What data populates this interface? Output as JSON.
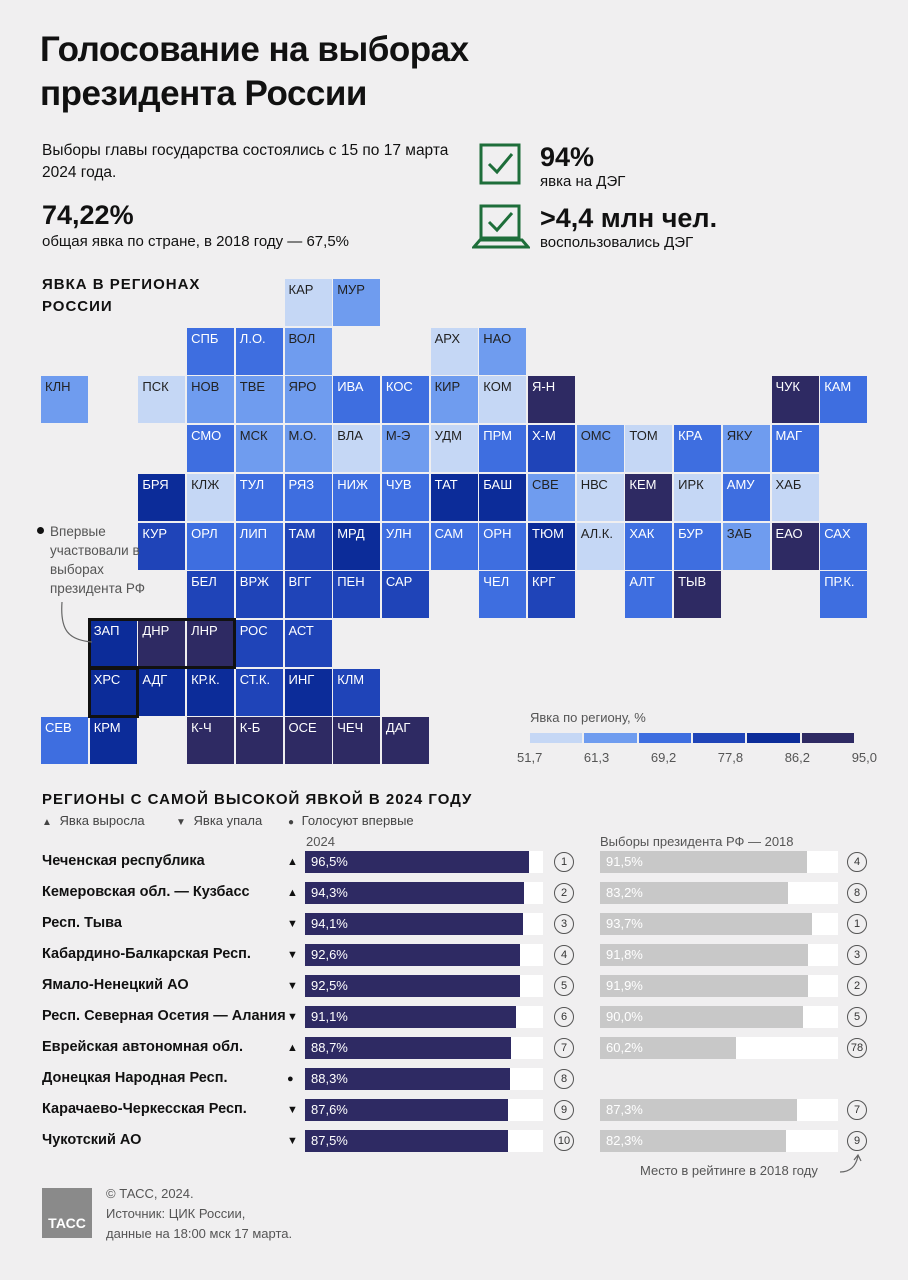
{
  "title": "Голосование на выборах президента России",
  "intro": "Выборы главы государства состоялись с 15 по 17 марта 2024 года.",
  "turnout": {
    "value": "74,22%",
    "caption": "общая явка по стране, в 2018 году — 67,5%"
  },
  "deg_turnout": {
    "value": "94%",
    "caption": "явка на ДЭГ"
  },
  "deg_users": {
    "value": ">4,4 млн чел.",
    "caption": "воспользовались ДЭГ"
  },
  "map_title": "ЯВКА В РЕГИОНАХ РОССИИ",
  "map_note": "Впервые участвовали в выборах президента РФ",
  "colors": [
    "#c5d7f5",
    "#6f9cef",
    "#3e6ee0",
    "#1f44b8",
    "#0c2c99",
    "#2e2a63"
  ],
  "map_legend": {
    "label": "Явка по региону, %",
    "ticks": [
      "51,7",
      "61,3",
      "69,2",
      "77,8",
      "86,2",
      "95,0"
    ]
  },
  "tiles": [
    {
      "code": "КАР",
      "col": 5,
      "row": 0,
      "level": 0
    },
    {
      "code": "МУР",
      "col": 6,
      "row": 0,
      "level": 1
    },
    {
      "code": "СПБ",
      "col": 3,
      "row": 1,
      "level": 2
    },
    {
      "code": "Л.О.",
      "col": 4,
      "row": 1,
      "level": 2
    },
    {
      "code": "ВОЛ",
      "col": 5,
      "row": 1,
      "level": 1
    },
    {
      "code": "АРХ",
      "col": 8,
      "row": 1,
      "level": 0
    },
    {
      "code": "НАО",
      "col": 9,
      "row": 1,
      "level": 1
    },
    {
      "code": "КЛН",
      "col": 0,
      "row": 2,
      "level": 1
    },
    {
      "code": "ПСК",
      "col": 2,
      "row": 2,
      "level": 0
    },
    {
      "code": "НОВ",
      "col": 3,
      "row": 2,
      "level": 1
    },
    {
      "code": "ТВЕ",
      "col": 4,
      "row": 2,
      "level": 1
    },
    {
      "code": "ЯРО",
      "col": 5,
      "row": 2,
      "level": 1
    },
    {
      "code": "ИВА",
      "col": 6,
      "row": 2,
      "level": 2
    },
    {
      "code": "КОС",
      "col": 7,
      "row": 2,
      "level": 2
    },
    {
      "code": "КИР",
      "col": 8,
      "row": 2,
      "level": 1
    },
    {
      "code": "КОМ",
      "col": 9,
      "row": 2,
      "level": 0
    },
    {
      "code": "Я-Н",
      "col": 10,
      "row": 2,
      "level": 5
    },
    {
      "code": "ЧУК",
      "col": 15,
      "row": 2,
      "level": 5
    },
    {
      "code": "КАМ",
      "col": 16,
      "row": 2,
      "level": 2
    },
    {
      "code": "СМО",
      "col": 3,
      "row": 3,
      "level": 2
    },
    {
      "code": "МСК",
      "col": 4,
      "row": 3,
      "level": 1
    },
    {
      "code": "М.О.",
      "col": 5,
      "row": 3,
      "level": 1
    },
    {
      "code": "ВЛА",
      "col": 6,
      "row": 3,
      "level": 0
    },
    {
      "code": "М-Э",
      "col": 7,
      "row": 3,
      "level": 1
    },
    {
      "code": "УДМ",
      "col": 8,
      "row": 3,
      "level": 0
    },
    {
      "code": "ПРМ",
      "col": 9,
      "row": 3,
      "level": 2
    },
    {
      "code": "Х-М",
      "col": 10,
      "row": 3,
      "level": 3
    },
    {
      "code": "ОМС",
      "col": 11,
      "row": 3,
      "level": 1
    },
    {
      "code": "ТОМ",
      "col": 12,
      "row": 3,
      "level": 0
    },
    {
      "code": "КРА",
      "col": 13,
      "row": 3,
      "level": 2
    },
    {
      "code": "ЯКУ",
      "col": 14,
      "row": 3,
      "level": 1
    },
    {
      "code": "МАГ",
      "col": 15,
      "row": 3,
      "level": 2
    },
    {
      "code": "БРЯ",
      "col": 2,
      "row": 4,
      "level": 4
    },
    {
      "code": "КЛЖ",
      "col": 3,
      "row": 4,
      "level": 0
    },
    {
      "code": "ТУЛ",
      "col": 4,
      "row": 4,
      "level": 2
    },
    {
      "code": "РЯЗ",
      "col": 5,
      "row": 4,
      "level": 2
    },
    {
      "code": "НИЖ",
      "col": 6,
      "row": 4,
      "level": 2
    },
    {
      "code": "ЧУВ",
      "col": 7,
      "row": 4,
      "level": 2
    },
    {
      "code": "ТАТ",
      "col": 8,
      "row": 4,
      "level": 4
    },
    {
      "code": "БАШ",
      "col": 9,
      "row": 4,
      "level": 4
    },
    {
      "code": "СВЕ",
      "col": 10,
      "row": 4,
      "level": 1
    },
    {
      "code": "НВС",
      "col": 11,
      "row": 4,
      "level": 0
    },
    {
      "code": "КЕМ",
      "col": 12,
      "row": 4,
      "level": 5
    },
    {
      "code": "ИРК",
      "col": 13,
      "row": 4,
      "level": 0
    },
    {
      "code": "АМУ",
      "col": 14,
      "row": 4,
      "level": 2
    },
    {
      "code": "ХАБ",
      "col": 15,
      "row": 4,
      "level": 0
    },
    {
      "code": "КУР",
      "col": 2,
      "row": 5,
      "level": 3
    },
    {
      "code": "ОРЛ",
      "col": 3,
      "row": 5,
      "level": 2
    },
    {
      "code": "ЛИП",
      "col": 4,
      "row": 5,
      "level": 2
    },
    {
      "code": "ТАМ",
      "col": 5,
      "row": 5,
      "level": 3
    },
    {
      "code": "МРД",
      "col": 6,
      "row": 5,
      "level": 4
    },
    {
      "code": "УЛН",
      "col": 7,
      "row": 5,
      "level": 2
    },
    {
      "code": "САМ",
      "col": 8,
      "row": 5,
      "level": 2
    },
    {
      "code": "ОРН",
      "col": 9,
      "row": 5,
      "level": 2
    },
    {
      "code": "ТЮМ",
      "col": 10,
      "row": 5,
      "level": 4
    },
    {
      "code": "АЛ.К.",
      "col": 11,
      "row": 5,
      "level": 0
    },
    {
      "code": "ХАК",
      "col": 12,
      "row": 5,
      "level": 2
    },
    {
      "code": "БУР",
      "col": 13,
      "row": 5,
      "level": 2
    },
    {
      "code": "ЗАБ",
      "col": 14,
      "row": 5,
      "level": 1
    },
    {
      "code": "ЕАО",
      "col": 15,
      "row": 5,
      "level": 5
    },
    {
      "code": "САХ",
      "col": 16,
      "row": 5,
      "level": 2
    },
    {
      "code": "БЕЛ",
      "col": 3,
      "row": 6,
      "level": 3
    },
    {
      "code": "ВРЖ",
      "col": 4,
      "row": 6,
      "level": 3
    },
    {
      "code": "ВГГ",
      "col": 5,
      "row": 6,
      "level": 3
    },
    {
      "code": "ПЕН",
      "col": 6,
      "row": 6,
      "level": 3
    },
    {
      "code": "САР",
      "col": 7,
      "row": 6,
      "level": 3
    },
    {
      "code": "ЧЕЛ",
      "col": 9,
      "row": 6,
      "level": 2
    },
    {
      "code": "КРГ",
      "col": 10,
      "row": 6,
      "level": 3
    },
    {
      "code": "АЛТ",
      "col": 12,
      "row": 6,
      "level": 2
    },
    {
      "code": "ТЫВ",
      "col": 13,
      "row": 6,
      "level": 5
    },
    {
      "code": "ПР.К.",
      "col": 16,
      "row": 6,
      "level": 2
    },
    {
      "code": "ЗАП",
      "col": 1,
      "row": 7,
      "level": 4
    },
    {
      "code": "ДНР",
      "col": 2,
      "row": 7,
      "level": 5
    },
    {
      "code": "ЛНР",
      "col": 3,
      "row": 7,
      "level": 5
    },
    {
      "code": "РОС",
      "col": 4,
      "row": 7,
      "level": 3
    },
    {
      "code": "АСТ",
      "col": 5,
      "row": 7,
      "level": 3
    },
    {
      "code": "ХРС",
      "col": 1,
      "row": 8,
      "level": 4
    },
    {
      "code": "АДГ",
      "col": 2,
      "row": 8,
      "level": 4
    },
    {
      "code": "КР.К.",
      "col": 3,
      "row": 8,
      "level": 4
    },
    {
      "code": "СТ.К.",
      "col": 4,
      "row": 8,
      "level": 3
    },
    {
      "code": "ИНГ",
      "col": 5,
      "row": 8,
      "level": 4
    },
    {
      "code": "КЛМ",
      "col": 6,
      "row": 8,
      "level": 3
    },
    {
      "code": "СЕВ",
      "col": 0,
      "row": 9,
      "level": 2
    },
    {
      "code": "КРМ",
      "col": 1,
      "row": 9,
      "level": 4
    },
    {
      "code": "К-Ч",
      "col": 3,
      "row": 9,
      "level": 5
    },
    {
      "code": "К-Б",
      "col": 4,
      "row": 9,
      "level": 5
    },
    {
      "code": "ОСЕ",
      "col": 5,
      "row": 9,
      "level": 5
    },
    {
      "code": "ЧЕЧ",
      "col": 6,
      "row": 9,
      "level": 5
    },
    {
      "code": "ДАГ",
      "col": 7,
      "row": 9,
      "level": 5
    }
  ],
  "ranking": {
    "title": "РЕГИОНЫ С САМОЙ ВЫСОКОЙ ЯВКОЙ В 2024 ГОДУ",
    "legend": {
      "up": "Явка выросла",
      "down": "Явка упала",
      "first": "Голосуют впервые"
    },
    "col2024": "2024",
    "col2018": "Выборы президента РФ — 2018",
    "rank_note": "Место в рейтинге в 2018 году",
    "rows": [
      {
        "name": "Чеченская республика",
        "trend": "up",
        "v2024": 96.5,
        "l2024": "96,5%",
        "rank": "1",
        "v2018": 91.5,
        "l2018": "91,5%",
        "rank2018": "4"
      },
      {
        "name": "Кемеровская обл. — Кузбасс",
        "trend": "up",
        "v2024": 94.3,
        "l2024": "94,3%",
        "rank": "2",
        "v2018": 83.2,
        "l2018": "83,2%",
        "rank2018": "8"
      },
      {
        "name": "Респ. Тыва",
        "trend": "down",
        "v2024": 94.1,
        "l2024": "94,1%",
        "rank": "3",
        "v2018": 93.7,
        "l2018": "93,7%",
        "rank2018": "1"
      },
      {
        "name": "Кабардино-Балкарская Респ.",
        "trend": "down",
        "v2024": 92.6,
        "l2024": "92,6%",
        "rank": "4",
        "v2018": 91.8,
        "l2018": "91,8%",
        "rank2018": "3"
      },
      {
        "name": "Ямало-Ненецкий АО",
        "trend": "down",
        "v2024": 92.5,
        "l2024": "92,5%",
        "rank": "5",
        "v2018": 91.9,
        "l2018": "91,9%",
        "rank2018": "2"
      },
      {
        "name": "Респ. Северная Осетия — Алания",
        "trend": "down",
        "v2024": 91.1,
        "l2024": "91,1%",
        "rank": "6",
        "v2018": 90.0,
        "l2018": "90,0%",
        "rank2018": "5"
      },
      {
        "name": "Еврейская автономная обл.",
        "trend": "up",
        "v2024": 88.7,
        "l2024": "88,7%",
        "rank": "7",
        "v2018": 60.2,
        "l2018": "60,2%",
        "rank2018": "78"
      },
      {
        "name": "Донецкая Народная Респ.",
        "trend": "first",
        "v2024": 88.3,
        "l2024": "88,3%",
        "rank": "8",
        "v2018": null,
        "l2018": "",
        "rank2018": ""
      },
      {
        "name": "Карачаево-Черкесская Респ.",
        "trend": "down",
        "v2024": 87.6,
        "l2024": "87,6%",
        "rank": "9",
        "v2018": 87.3,
        "l2018": "87,3%",
        "rank2018": "7"
      },
      {
        "name": "Чукотский АО",
        "trend": "down",
        "v2024": 87.5,
        "l2024": "87,5%",
        "rank": "10",
        "v2018": 82.3,
        "l2018": "82,3%",
        "rank2018": "9"
      }
    ]
  },
  "chart_data": {
    "type": "bar",
    "categories": [
      "Чеченская республика",
      "Кемеровская обл. — Кузбасс",
      "Респ. Тыва",
      "Кабардино-Балкарская Респ.",
      "Ямало-Ненецкий АО",
      "Респ. Северная Осетия — Алания",
      "Еврейская автономная обл.",
      "Донецкая Народная Респ.",
      "Карачаево-Черкесская Респ.",
      "Чукотский АО"
    ],
    "series": [
      {
        "name": "2024",
        "values": [
          96.5,
          94.3,
          94.1,
          92.6,
          92.5,
          91.1,
          88.7,
          88.3,
          87.6,
          87.5
        ]
      },
      {
        "name": "Выборы президента РФ — 2018",
        "values": [
          91.5,
          83.2,
          93.7,
          91.8,
          91.9,
          90.0,
          60.2,
          null,
          87.3,
          82.3
        ]
      }
    ],
    "title": "РЕГИОНЫ С САМОЙ ВЫСОКОЙ ЯВКОЙ В 2024 ГОДУ",
    "xlim": [
      0,
      100
    ]
  },
  "footer": {
    "copyright": "© ТАСС, 2024.",
    "source1": "Источник: ЦИК России,",
    "source2": "данные на 18:00 мск 17 марта.",
    "logo": "ТАСС"
  }
}
